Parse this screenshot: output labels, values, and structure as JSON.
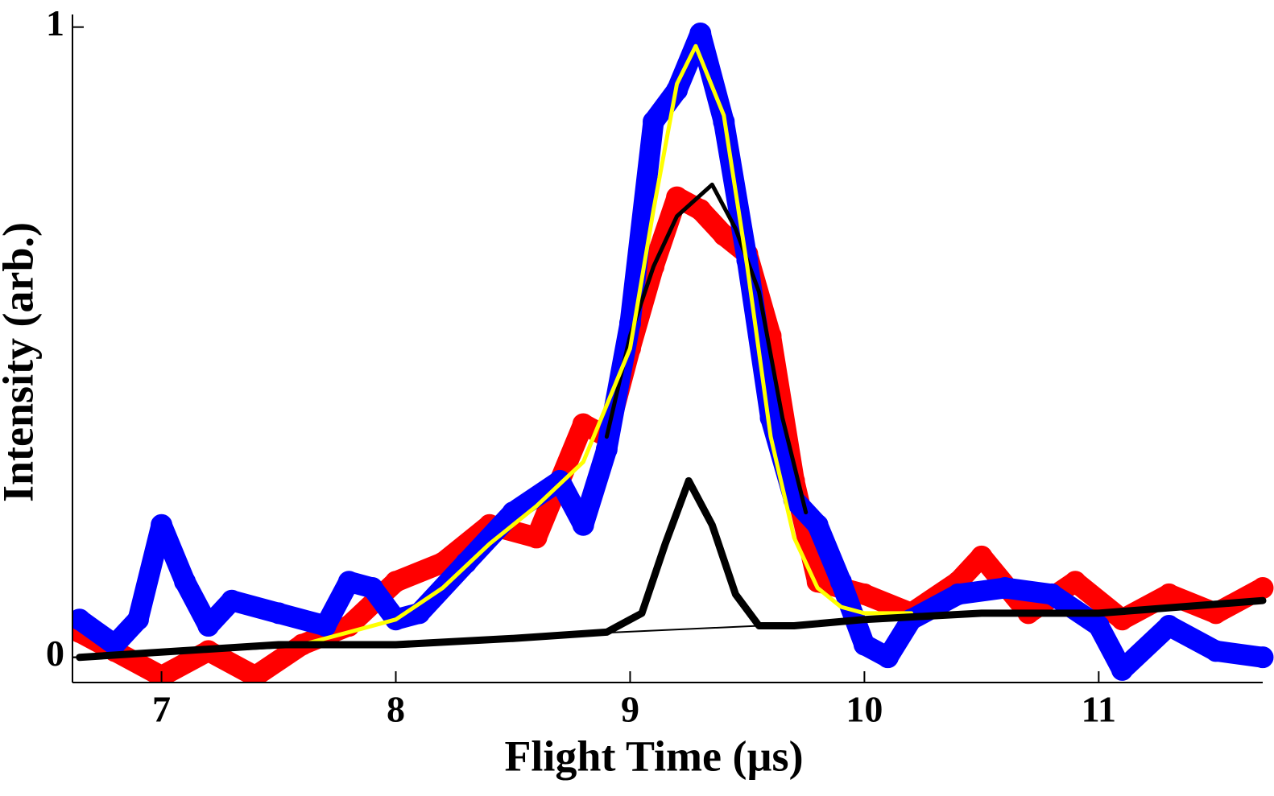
{
  "chart_data": {
    "type": "line",
    "x_label": "Flight Time (µs)",
    "y_label": "Intensity (arb.)",
    "xlim": [
      6.62,
      11.7
    ],
    "ylim": [
      -0.04,
      1.02
    ],
    "xticks": [
      7,
      8,
      9,
      10,
      11
    ],
    "yticks": [
      0,
      1
    ],
    "series": [
      {
        "color": "#ff0000",
        "style": "markers",
        "x": [
          6.65,
          6.8,
          7.0,
          7.2,
          7.4,
          7.6,
          7.8,
          8.0,
          8.2,
          8.4,
          8.6,
          8.8,
          8.9,
          9.0,
          9.1,
          9.2,
          9.3,
          9.4,
          9.5,
          9.6,
          9.7,
          9.8,
          9.9,
          10.0,
          10.2,
          10.4,
          10.5,
          10.7,
          10.9,
          11.1,
          11.3,
          11.5,
          11.7
        ],
        "values": [
          0.04,
          0.01,
          -0.03,
          0.01,
          -0.03,
          0.02,
          0.05,
          0.12,
          0.15,
          0.21,
          0.19,
          0.37,
          0.35,
          0.49,
          0.62,
          0.73,
          0.71,
          0.67,
          0.64,
          0.51,
          0.28,
          0.12,
          0.11,
          0.1,
          0.07,
          0.12,
          0.16,
          0.07,
          0.12,
          0.06,
          0.1,
          0.07,
          0.11
        ]
      },
      {
        "color": "#0000ff",
        "style": "markers",
        "x": [
          6.65,
          6.8,
          6.9,
          7.0,
          7.1,
          7.2,
          7.3,
          7.5,
          7.7,
          7.8,
          7.9,
          8.0,
          8.1,
          8.3,
          8.5,
          8.7,
          8.8,
          8.9,
          9.0,
          9.1,
          9.2,
          9.3,
          9.4,
          9.5,
          9.6,
          9.7,
          9.8,
          9.9,
          10.0,
          10.1,
          10.2,
          10.4,
          10.6,
          10.8,
          11.0,
          11.1,
          11.3,
          11.5,
          11.7
        ],
        "values": [
          0.06,
          0.02,
          0.06,
          0.21,
          0.12,
          0.05,
          0.09,
          0.07,
          0.05,
          0.12,
          0.11,
          0.06,
          0.07,
          0.15,
          0.23,
          0.28,
          0.21,
          0.33,
          0.53,
          0.85,
          0.9,
          0.99,
          0.85,
          0.63,
          0.38,
          0.25,
          0.21,
          0.12,
          0.02,
          0.0,
          0.06,
          0.1,
          0.11,
          0.1,
          0.05,
          -0.02,
          0.05,
          0.01,
          0.0
        ]
      },
      {
        "color": "#000000",
        "style": "line",
        "x": [
          8.9,
          9.0,
          9.1,
          9.2,
          9.35,
          9.45,
          9.55,
          9.65,
          9.75
        ],
        "values": [
          0.35,
          0.51,
          0.62,
          0.7,
          0.75,
          0.68,
          0.58,
          0.38,
          0.23
        ]
      },
      {
        "color": "#ffff00",
        "style": "line",
        "x": [
          7.6,
          7.8,
          8.0,
          8.2,
          8.4,
          8.6,
          8.8,
          9.0,
          9.1,
          9.2,
          9.28,
          9.4,
          9.5,
          9.6,
          9.7,
          9.8,
          9.9,
          10.0,
          10.2
        ],
        "values": [
          0.02,
          0.04,
          0.06,
          0.11,
          0.18,
          0.24,
          0.31,
          0.49,
          0.71,
          0.91,
          0.97,
          0.86,
          0.62,
          0.35,
          0.19,
          0.11,
          0.08,
          0.07,
          0.07
        ]
      },
      {
        "color": "#000000",
        "style": "thin-line",
        "x": [
          6.62,
          9.55
        ],
        "values": [
          0.0,
          0.05
        ]
      },
      {
        "color": "#000000",
        "style": "bold-line",
        "x": [
          6.65,
          7.5,
          8.0,
          8.5,
          8.9,
          9.05,
          9.15,
          9.25,
          9.35,
          9.45,
          9.55,
          9.7,
          10.0,
          10.5,
          11.0,
          11.7
        ],
        "values": [
          0.0,
          0.02,
          0.02,
          0.03,
          0.04,
          0.07,
          0.18,
          0.28,
          0.21,
          0.1,
          0.05,
          0.05,
          0.06,
          0.07,
          0.07,
          0.09
        ]
      }
    ]
  }
}
